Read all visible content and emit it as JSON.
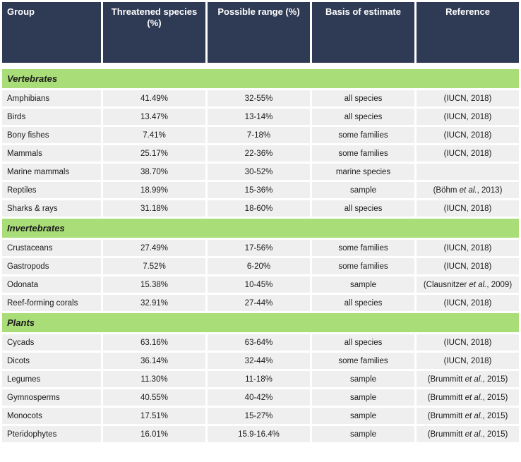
{
  "headers": [
    "Group",
    "Threatened species (%)",
    "Possible range (%)",
    "Basis of estimate",
    "Reference"
  ],
  "sections": [
    {
      "title": "Vertebrates",
      "rows": [
        {
          "group": "Amphibians",
          "threatened": "41.49%",
          "range": "32-55%",
          "basis": "all species",
          "ref": "(IUCN, 2018)"
        },
        {
          "group": "Birds",
          "threatened": "13.47%",
          "range": "13-14%",
          "basis": "all species",
          "ref": "(IUCN, 2018)"
        },
        {
          "group": "Bony fishes",
          "threatened": "7.41%",
          "range": "7-18%",
          "basis": "some families",
          "ref": "(IUCN, 2018)"
        },
        {
          "group": "Mammals",
          "threatened": "25.17%",
          "range": "22-36%",
          "basis": "some families",
          "ref": "(IUCN, 2018)"
        },
        {
          "group": "Marine mammals",
          "threatened": "38.70%",
          "range": "30-52%",
          "basis": "marine species",
          "ref": ""
        },
        {
          "group": "Reptiles",
          "threatened": "18.99%",
          "range": "15-36%",
          "basis": "sample",
          "ref": "(Böhm et al., 2013)"
        },
        {
          "group": "Sharks & rays",
          "threatened": "31.18%",
          "range": "18-60%",
          "basis": "all species",
          "ref": "(IUCN, 2018)"
        }
      ]
    },
    {
      "title": "Invertebrates",
      "rows": [
        {
          "group": "Crustaceans",
          "threatened": "27.49%",
          "range": "17-56%",
          "basis": "some families",
          "ref": "(IUCN, 2018)"
        },
        {
          "group": "Gastropods",
          "threatened": "7.52%",
          "range": "6-20%",
          "basis": "some families",
          "ref": "(IUCN, 2018)"
        },
        {
          "group": "Odonata",
          "threatened": "15.38%",
          "range": "10-45%",
          "basis": "sample",
          "ref": "(Clausnitzer et al., 2009)"
        },
        {
          "group": "Reef-forming corals",
          "threatened": "32.91%",
          "range": "27-44%",
          "basis": "all species",
          "ref": "(IUCN, 2018)"
        }
      ]
    },
    {
      "title": "Plants",
      "rows": [
        {
          "group": "Cycads",
          "threatened": "63.16%",
          "range": "63-64%",
          "basis": "all species",
          "ref": "(IUCN, 2018)"
        },
        {
          "group": "Dicots",
          "threatened": "36.14%",
          "range": "32-44%",
          "basis": "some families",
          "ref": "(IUCN, 2018)"
        },
        {
          "group": "Legumes",
          "threatened": "11.30%",
          "range": "11-18%",
          "basis": "sample",
          "ref": "(Brummitt et al., 2015)"
        },
        {
          "group": "Gymnosperms",
          "threatened": "40.55%",
          "range": "40-42%",
          "basis": "sample",
          "ref": "(Brummitt et al., 2015)"
        },
        {
          "group": "Monocots",
          "threatened": "17.51%",
          "range": "15-27%",
          "basis": "sample",
          "ref": "(Brummitt et al., 2015)"
        },
        {
          "group": "Pteridophytes",
          "threatened": "16.01%",
          "range": "15.9-16.4%",
          "basis": "sample",
          "ref": "(Brummitt et al., 2015)"
        }
      ]
    }
  ]
}
